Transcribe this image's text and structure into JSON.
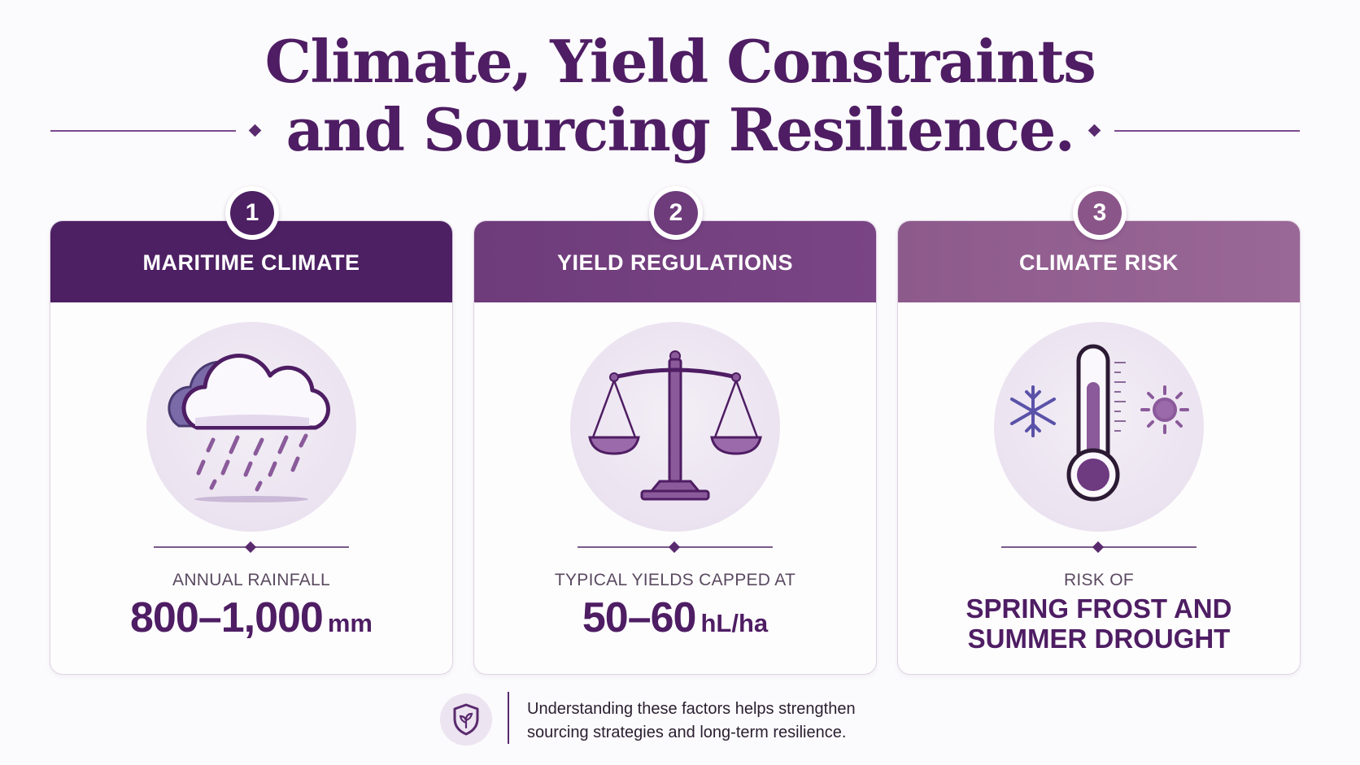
{
  "title": {
    "line1": "Climate, Yield Constraints",
    "line2": "and Sourcing Resilience."
  },
  "cards": [
    {
      "number": "1",
      "heading": "MARITIME CLIMATE",
      "icon": "rain-cloud-icon",
      "label": "ANNUAL RAINFALL",
      "value": "800–1,000",
      "unit": "mm",
      "color": "#4d1f63"
    },
    {
      "number": "2",
      "heading": "YIELD REGULATIONS",
      "icon": "balance-scale-icon",
      "label": "TYPICAL YIELDS CAPPED AT",
      "value": "50–60",
      "unit": "hL/ha",
      "color": "#74407f"
    },
    {
      "number": "3",
      "heading": "CLIMATE RISK",
      "icon": "thermometer-icon",
      "label": "RISK OF",
      "value_line1": "SPRING FROST AND",
      "value_line2": "SUMMER DROUGHT",
      "color": "#93608f"
    }
  ],
  "footer": {
    "icon": "shield-leaf-icon",
    "line1": "Understanding these factors helps strengthen",
    "line2": "sourcing strategies and long-term resilience."
  }
}
